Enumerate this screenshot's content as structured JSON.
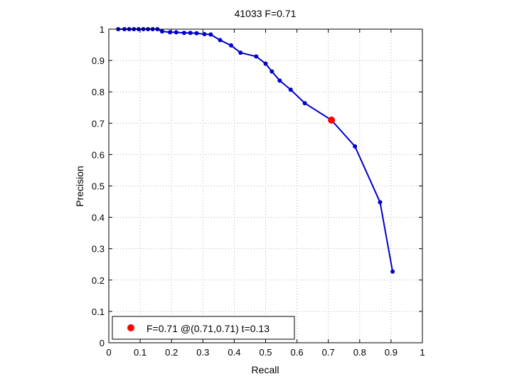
{
  "figure": {
    "title": "41033 F=0.71",
    "xlabel": "Recall",
    "ylabel": "Precision"
  },
  "legend": {
    "text": "F=0.71 @(0.71,0.71) t=0.13",
    "placement": "bottom-left"
  },
  "colors": {
    "curve": "#0000cc",
    "marker_points": "#0000cc",
    "best_point": "#ff0000",
    "grid": "#b0b0b0",
    "axes": "#000000"
  },
  "chart_data": {
    "type": "line",
    "title": "41033 F=0.71",
    "xlabel": "Recall",
    "ylabel": "Precision",
    "xlim": [
      0,
      1
    ],
    "ylim": [
      0,
      1
    ],
    "xticks": [
      "0",
      "0.1",
      "0.2",
      "0.3",
      "0.4",
      "0.5",
      "0.6",
      "0.7",
      "0.8",
      "0.9",
      "1"
    ],
    "yticks": [
      "0",
      "0.1",
      "0.2",
      "0.3",
      "0.4",
      "0.5",
      "0.6",
      "0.7",
      "0.8",
      "0.9",
      "1"
    ],
    "grid": true,
    "legend_placement": "bottom-left",
    "series": [
      {
        "x": [
          0.03,
          0.05,
          0.065,
          0.08,
          0.095,
          0.11,
          0.125,
          0.14,
          0.155,
          0.17,
          0.195,
          0.215,
          0.24,
          0.26,
          0.28,
          0.305,
          0.325,
          0.355,
          0.39,
          0.42,
          0.47,
          0.5,
          0.52,
          0.545,
          0.58,
          0.625,
          0.71,
          0.785,
          0.865,
          0.905
        ],
        "y": [
          1.0,
          1.0,
          1.0,
          1.0,
          1.0,
          1.0,
          1.0,
          1.0,
          1.0,
          0.993,
          0.99,
          0.99,
          0.988,
          0.988,
          0.987,
          0.984,
          0.983,
          0.965,
          0.948,
          0.925,
          0.913,
          0.89,
          0.865,
          0.836,
          0.807,
          0.764,
          0.71,
          0.626,
          0.448,
          0.227
        ]
      }
    ],
    "best_point": {
      "x": 0.71,
      "y": 0.71,
      "F": 0.71,
      "t": 0.13
    }
  }
}
